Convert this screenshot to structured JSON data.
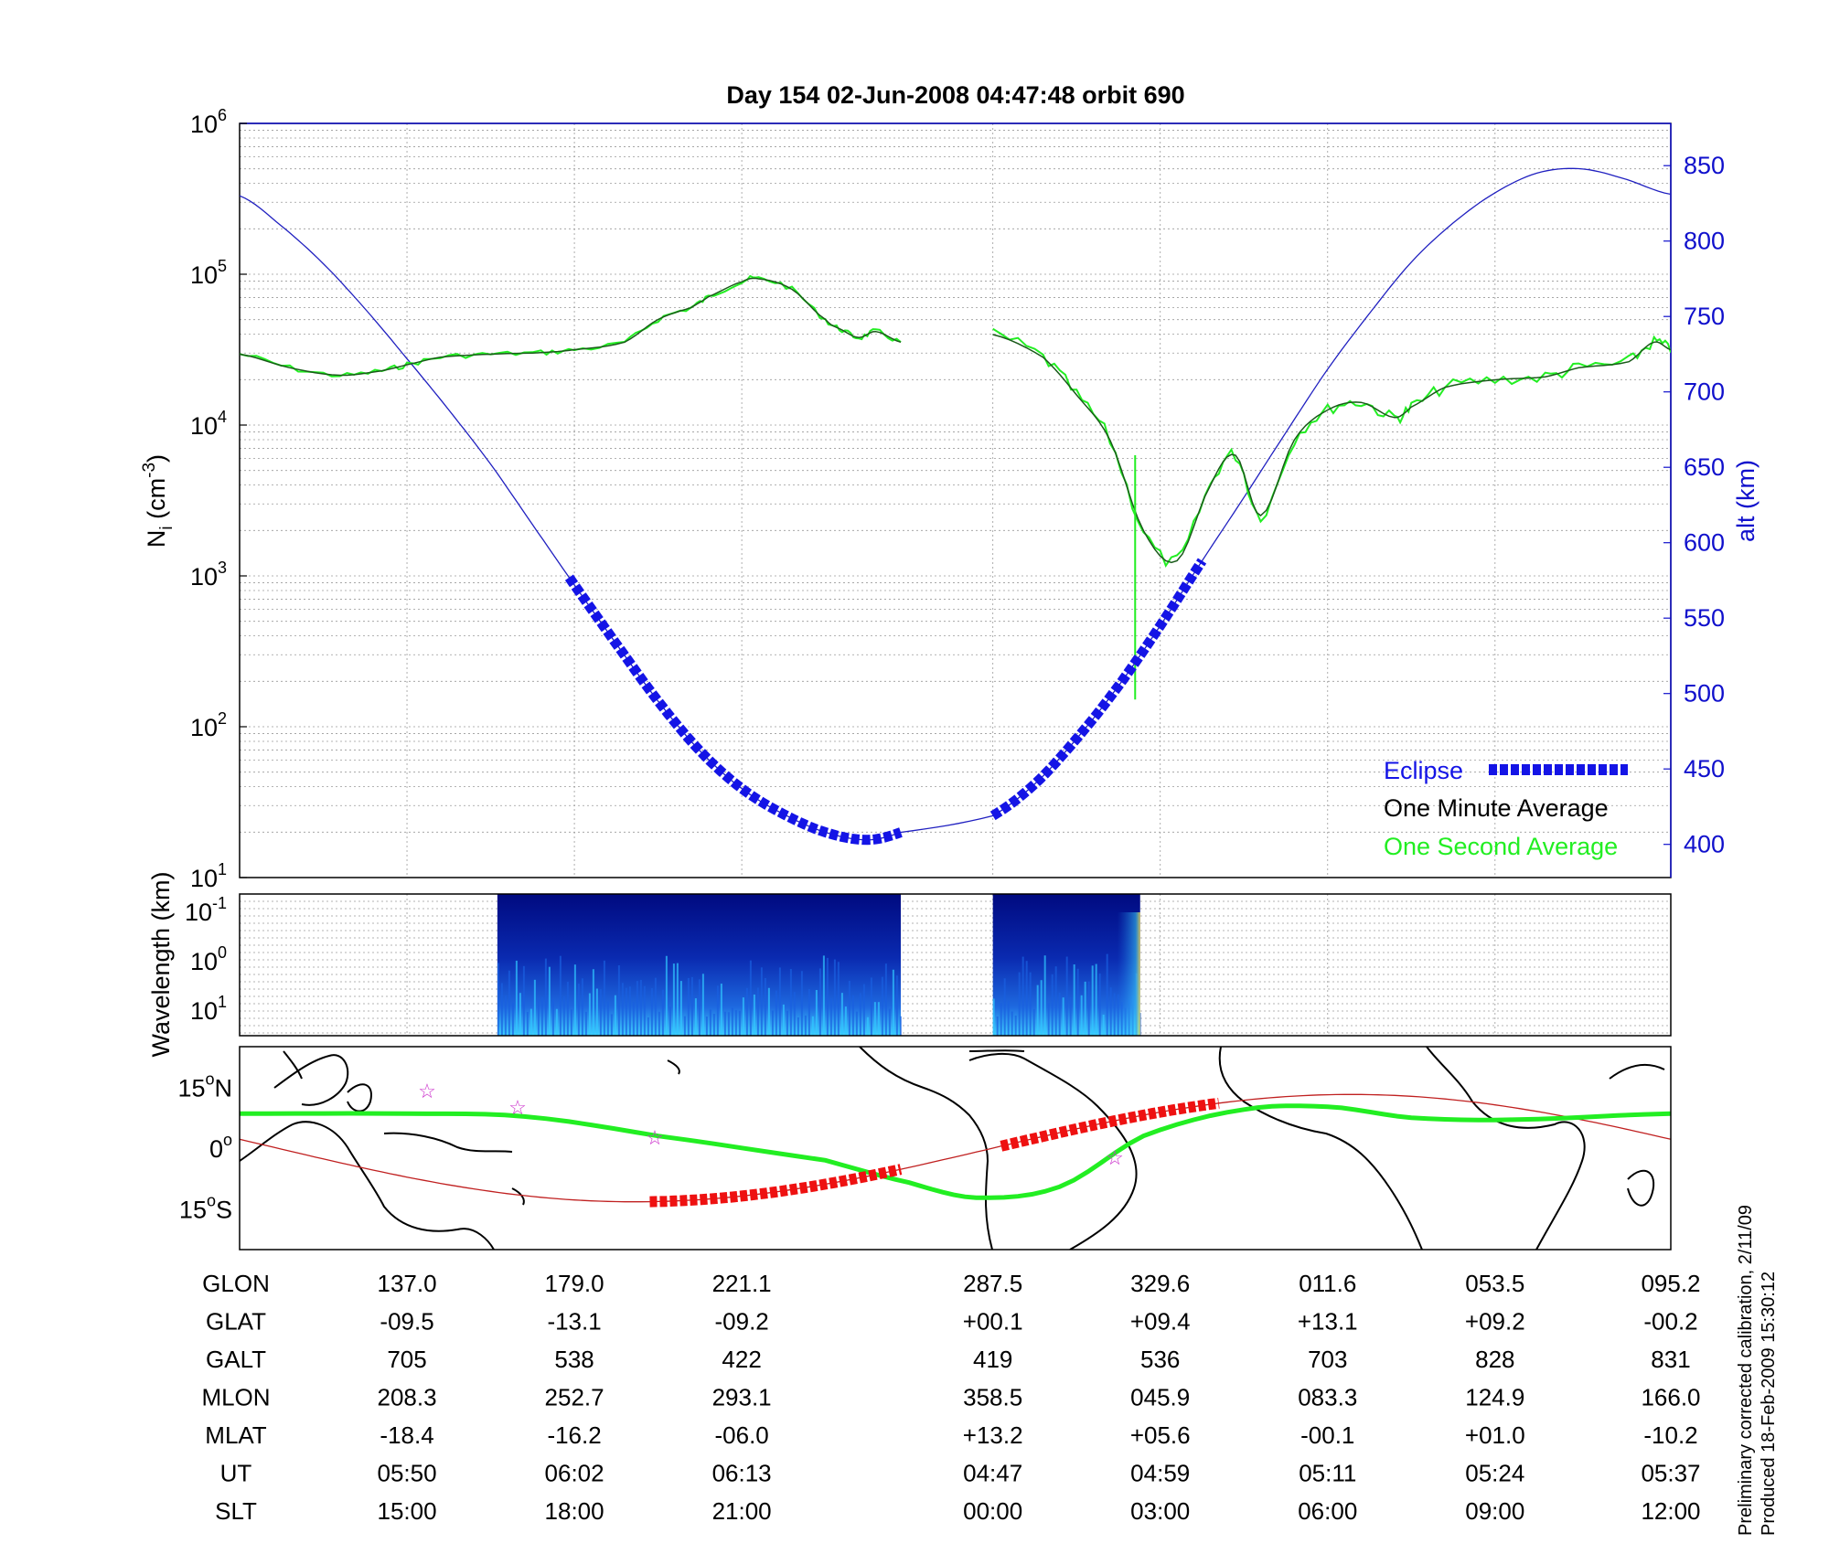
{
  "chart_data": [
    {
      "type": "line",
      "title": "Day 154  02-Jun-2008 04:47:48   orbit 690",
      "ylabel": "N",
      "ylabel_sub": "i",
      "ylabel_unit": " (cm",
      "ylabel_unit_exp": "-3",
      "ylabel_close": ")",
      "yscale": "log",
      "ylim": [
        1,
        6
      ],
      "y_ticks": [
        {
          "base": "10",
          "exp": "1"
        },
        {
          "base": "10",
          "exp": "2"
        },
        {
          "base": "10",
          "exp": "3"
        },
        {
          "base": "10",
          "exp": "4"
        },
        {
          "base": "10",
          "exp": "5"
        },
        {
          "base": "10",
          "exp": "6"
        }
      ],
      "y2label": "alt (km)",
      "y2lim": [
        378,
        878
      ],
      "y2_ticks": [
        "400",
        "450",
        "500",
        "550",
        "600",
        "650",
        "700",
        "750",
        "800",
        "850"
      ],
      "xlim": [
        0,
        8.55
      ],
      "legend": {
        "position": "bottom-right",
        "entries": [
          {
            "label": "Eclipse",
            "color": "#1414e6"
          },
          {
            "label": "One Minute Average",
            "color": "#000000"
          },
          {
            "label": "One Second Average",
            "color": "#22ee22"
          }
        ]
      },
      "series": [
        {
          "name": "altitude",
          "color": "#2020c0",
          "x": [
            0,
            0.25,
            0.5,
            0.75,
            1.0,
            1.25,
            1.5,
            1.75,
            2.0,
            2.25,
            2.5,
            2.75,
            3.0,
            3.25,
            3.5,
            3.75,
            3.95,
            4.5,
            4.75,
            5.0,
            5.25,
            5.5,
            5.75,
            6.0,
            6.25,
            6.5,
            6.75,
            7.0,
            7.25,
            7.5,
            7.75,
            8.0,
            8.25,
            8.55
          ],
          "y": [
            830,
            810,
            785,
            755,
            722,
            688,
            652,
            612,
            572,
            533,
            495,
            462,
            437,
            420,
            408,
            403,
            408,
            419,
            440,
            470,
            505,
            545,
            588,
            630,
            673,
            715,
            752,
            786,
            812,
            832,
            845,
            848,
            842,
            831
          ]
        },
        {
          "name": "One Minute Average",
          "color": "#1a5a1a",
          "x": [
            0,
            0.3,
            0.6,
            0.85,
            1.0,
            1.2,
            1.5,
            1.8,
            2.0,
            2.3,
            2.5,
            2.7,
            2.8,
            3.0,
            3.1,
            3.3,
            3.5,
            3.6,
            3.7,
            3.8,
            3.95,
            4.5,
            4.8,
            5.0,
            5.2,
            5.4,
            5.6,
            5.8,
            5.95,
            6.1,
            6.3,
            6.5,
            6.7,
            6.9,
            7.0,
            7.2,
            7.5,
            7.8,
            8.0,
            8.3,
            8.45,
            8.55
          ],
          "x_gap_after": 3.95,
          "y": [
            4.47,
            4.38,
            4.33,
            4.36,
            4.4,
            4.45,
            4.47,
            4.48,
            4.5,
            4.55,
            4.7,
            4.78,
            4.85,
            4.95,
            4.97,
            4.9,
            4.7,
            4.63,
            4.58,
            4.62,
            4.55,
            4.6,
            4.45,
            4.2,
            3.9,
            3.3,
            3.1,
            3.6,
            3.8,
            3.4,
            3.9,
            4.1,
            4.15,
            4.05,
            4.12,
            4.25,
            4.3,
            4.32,
            4.38,
            4.42,
            4.55,
            4.5
          ]
        }
      ]
    },
    {
      "type": "heatmap",
      "ylabel": "Wavelength (km)",
      "y_ticks": [
        {
          "base": "10",
          "exp": "-1"
        },
        {
          "base": "10",
          "exp": "0"
        },
        {
          "base": "10",
          "exp": "1"
        }
      ],
      "blocks": [
        {
          "x_start": 1.54,
          "x_end": 3.95
        },
        {
          "x_start": 4.5,
          "x_end": 5.38
        }
      ]
    },
    {
      "type": "map",
      "y_ticks": [
        {
          "value": "15",
          "unit": "N"
        },
        {
          "value": "0",
          "unit": ""
        },
        {
          "value": "15",
          "unit": "S"
        }
      ],
      "lat_range": [
        -25,
        25
      ]
    }
  ],
  "table": {
    "rows": [
      {
        "label": "GLON",
        "values": [
          "137.0",
          "179.0",
          "221.1",
          "287.5",
          "329.6",
          "011.6",
          "053.5",
          "095.2"
        ]
      },
      {
        "label": "GLAT",
        "values": [
          "-09.5",
          "-13.1",
          "-09.2",
          "+00.1",
          "+09.4",
          "+13.1",
          "+09.2",
          "-00.2"
        ]
      },
      {
        "label": "GALT",
        "values": [
          "705",
          "538",
          "422",
          "419",
          "536",
          "703",
          "828",
          "831"
        ]
      },
      {
        "label": "MLON",
        "values": [
          "208.3",
          "252.7",
          "293.1",
          "358.5",
          "045.9",
          "083.3",
          "124.9",
          "166.0"
        ]
      },
      {
        "label": "MLAT",
        "values": [
          "-18.4",
          "-16.2",
          "-06.0",
          "+13.2",
          "+05.6",
          "-00.1",
          "+01.0",
          "-10.2"
        ]
      },
      {
        "label": "UT",
        "values": [
          "05:50",
          "06:02",
          "06:13",
          "04:47",
          "04:59",
          "05:11",
          "05:24",
          "05:37"
        ]
      },
      {
        "label": "SLT",
        "values": [
          "15:00",
          "18:00",
          "21:00",
          "00:00",
          "03:00",
          "06:00",
          "09:00",
          "12:00"
        ]
      }
    ]
  },
  "footer": {
    "line1": "Preliminary corrected calibration, 2/11/09",
    "line2": "Produced 18-Feb-2009 15:30:12"
  }
}
